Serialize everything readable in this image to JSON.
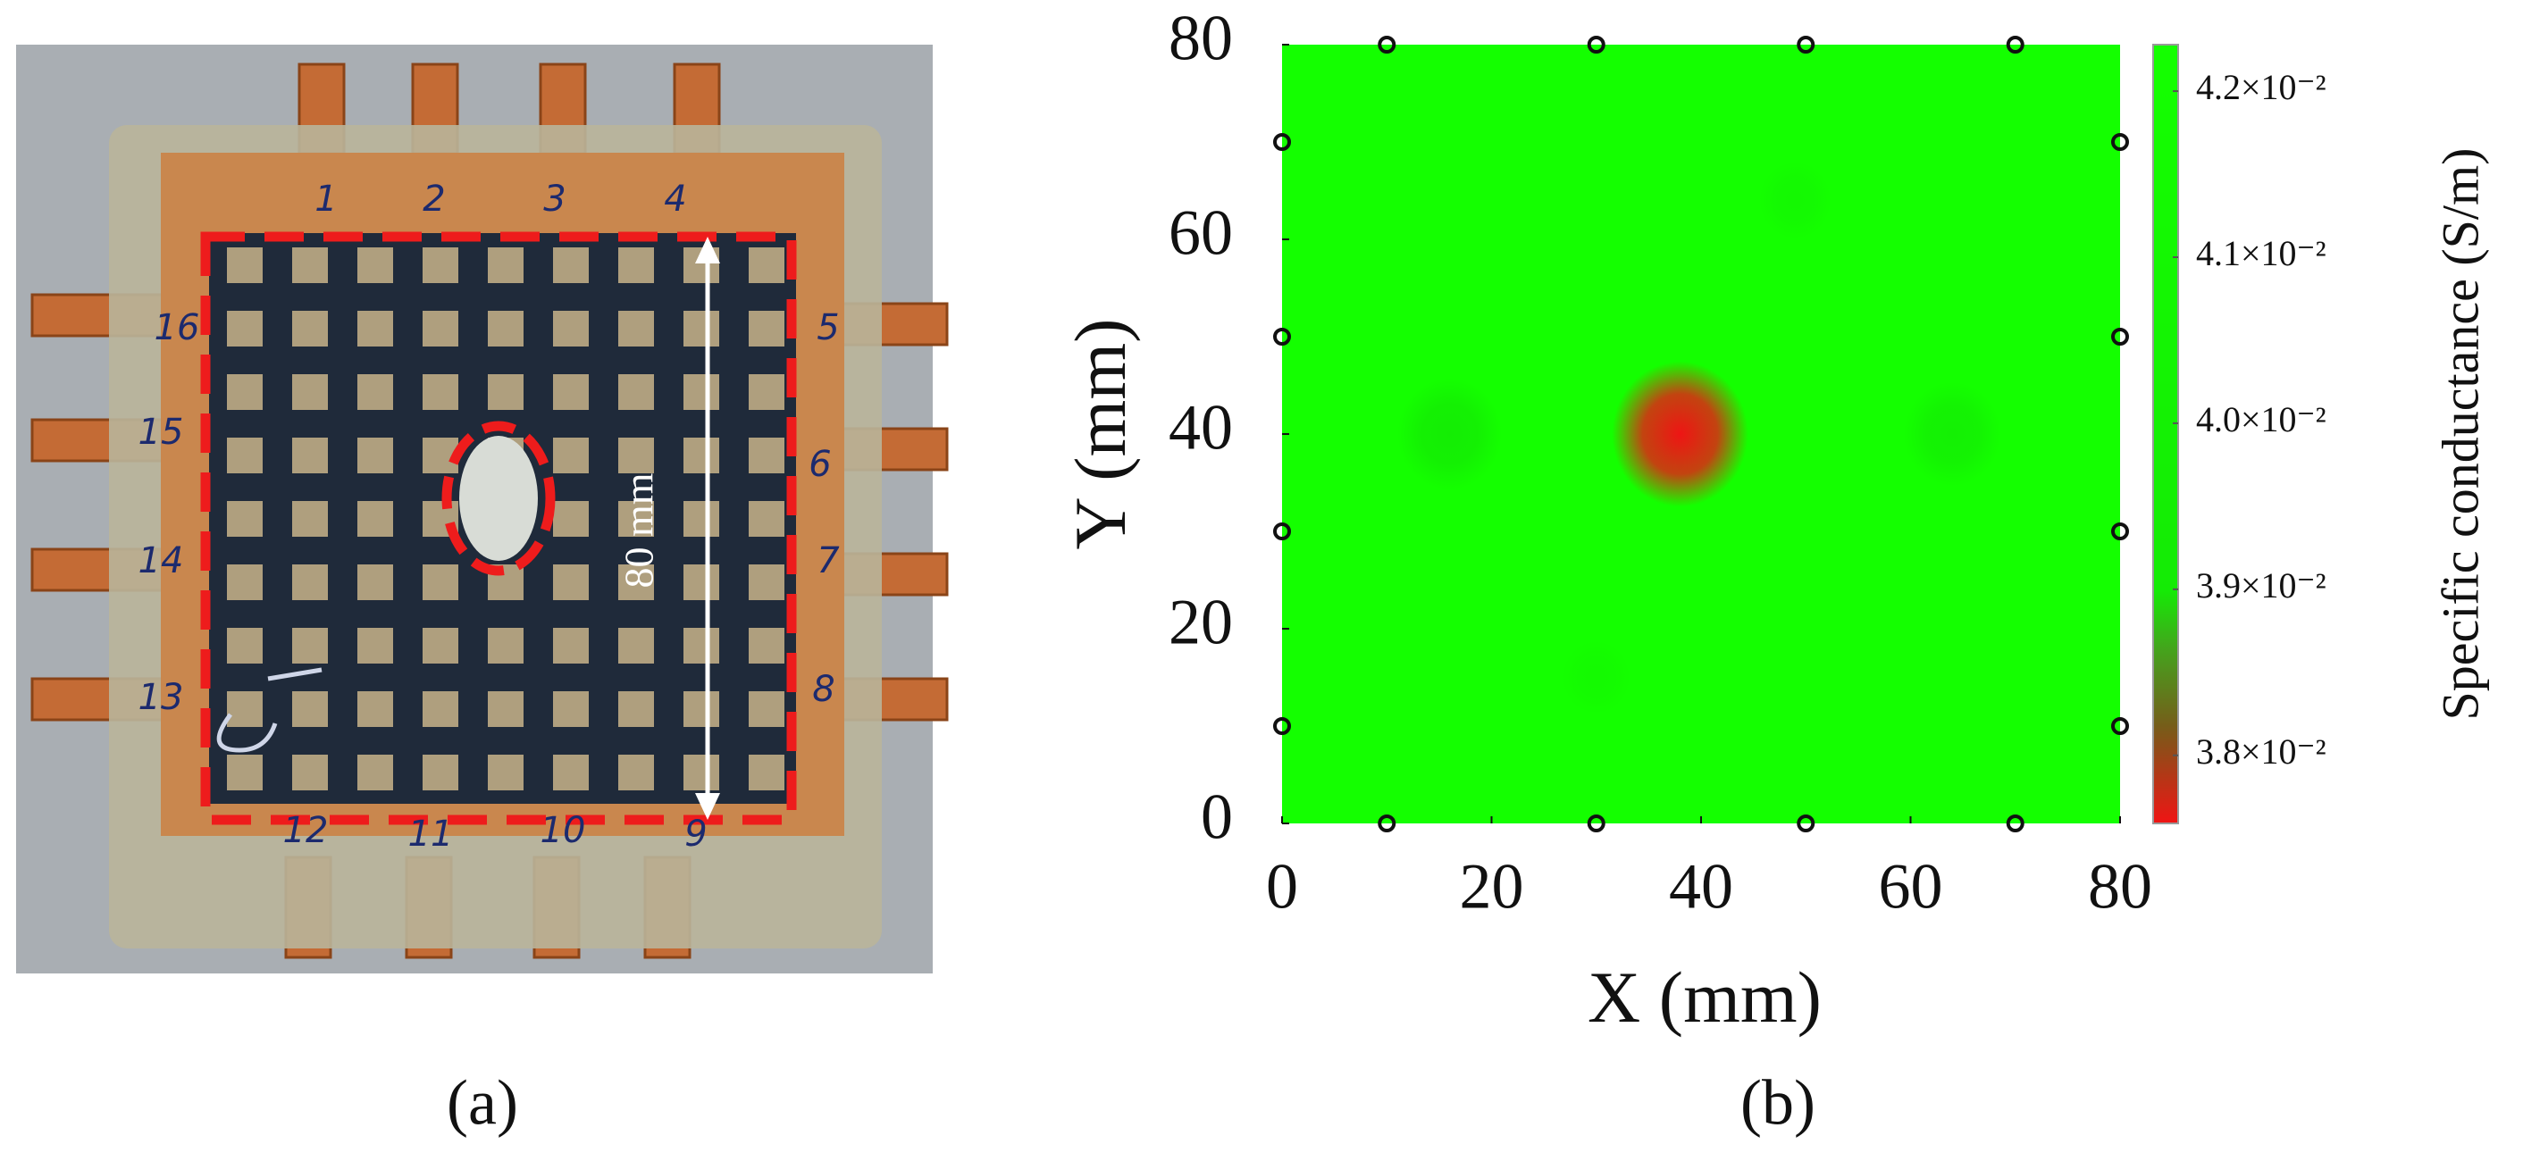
{
  "panel_labels": [
    "(a)",
    "(b)"
  ],
  "photo": {
    "electrode_labels": [
      "1",
      "2",
      "3",
      "4",
      "5",
      "6",
      "7",
      "8",
      "9",
      "10",
      "11",
      "12",
      "13",
      "14",
      "15",
      "16"
    ],
    "dimension_label": "80 mm"
  },
  "chart_data": {
    "type": "heatmap",
    "xlabel": "X (mm)",
    "ylabel": "Y (mm)",
    "colorbar_label": "Specific conductance (S/m)",
    "xlim": [
      0,
      80
    ],
    "ylim": [
      0,
      80
    ],
    "xticks": [
      0,
      20,
      40,
      60,
      80
    ],
    "yticks": [
      0,
      20,
      40,
      60,
      80
    ],
    "clim": [
      0.03759,
      0.04228
    ],
    "cticks": [
      {
        "value": 0.038,
        "label": "3.8×10⁻²"
      },
      {
        "value": 0.039,
        "label": "3.9×10⁻²"
      },
      {
        "value": 0.04,
        "label": "4.0×10⁻²"
      },
      {
        "value": 0.041,
        "label": "4.1×10⁻²"
      },
      {
        "value": 0.042,
        "label": "4.2×10⁻²"
      }
    ],
    "points": [
      {
        "x": 38,
        "y": 40,
        "value": 0.0376
      },
      {
        "x": 16,
        "y": 40,
        "value": 0.0394
      },
      {
        "x": 64,
        "y": 40,
        "value": 0.0398
      },
      {
        "x": 49,
        "y": 64,
        "value": 0.0412
      },
      {
        "x": 30,
        "y": 15,
        "value": 0.0414
      }
    ],
    "electrodes": {
      "x": [
        10,
        30,
        50,
        70,
        80,
        80,
        80,
        80,
        70,
        50,
        30,
        10,
        0,
        0,
        0,
        0
      ],
      "y": [
        80,
        80,
        80,
        80,
        70,
        50,
        30,
        10,
        0,
        0,
        0,
        0,
        10,
        30,
        50,
        70
      ]
    }
  }
}
